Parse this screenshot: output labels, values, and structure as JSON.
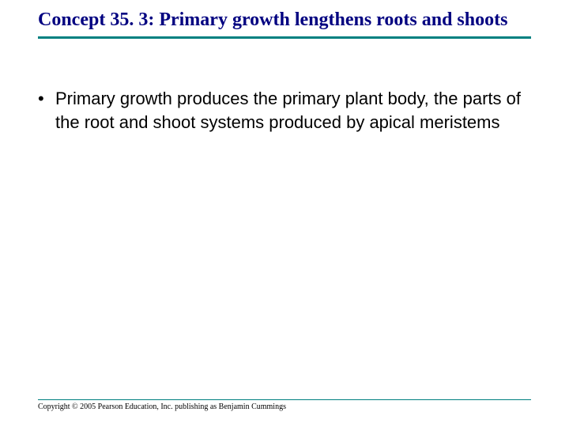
{
  "colors": {
    "title_color": "#000080",
    "rule_color": "#008080",
    "body_text_color": "#000000",
    "background": "#ffffff"
  },
  "typography": {
    "title_font_family": "Times New Roman",
    "title_font_size_pt": 18,
    "title_font_weight": "bold",
    "body_font_family": "Arial",
    "body_font_size_pt": 16,
    "footer_font_family": "Times New Roman",
    "footer_font_size_pt": 7
  },
  "title": "Concept 35. 3: Primary growth lengthens roots and shoots",
  "bullets": [
    "Primary growth produces the primary plant body, the parts of the root and shoot systems produced by apical meristems"
  ],
  "footer": "Copyright © 2005 Pearson Education, Inc. publishing as Benjamin Cummings"
}
